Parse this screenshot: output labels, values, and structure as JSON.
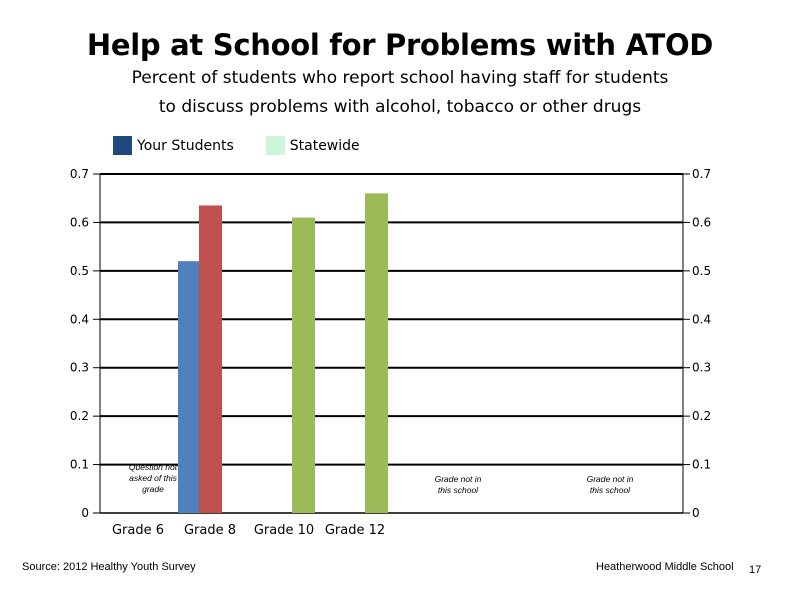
{
  "title": "Help at School for Problems with ATOD",
  "subtitle_line1": "Percent of students who report school having staff for students",
  "subtitle_line2": "to discuss problems with alcohol, tobacco or other drugs",
  "legend": [
    {
      "label": "Your Students",
      "color": "#1f497d"
    },
    {
      "label": "Statewide",
      "color": "#ccf5dc"
    }
  ],
  "footer": {
    "source": "Source: 2012 Healthy Youth Survey",
    "school": "Heatherwood Middle  School",
    "page": "17"
  },
  "chart_data": {
    "type": "bar",
    "categories": [
      "Grade 6",
      "Grade 8",
      "Grade 10",
      "Grade 12"
    ],
    "series": [
      {
        "values": [
          null,
          0.52,
          null,
          null
        ],
        "color": "#4f81bd"
      },
      {
        "values": [
          null,
          0.635,
          0.61,
          0.66
        ],
        "color": "#c0504d",
        "alt_color": "#9bbb59"
      }
    ],
    "ylim": [
      0,
      0.7
    ],
    "yticks": [
      "0",
      "0.1",
      "0.2",
      "0.3",
      "0.4",
      "0.5",
      "0.6",
      "0.7"
    ],
    "secondary_axis": true,
    "grid": true,
    "annotations": [
      {
        "lines": [
          "Question not",
          "asked of this",
          "grade"
        ],
        "category": "Grade 6"
      },
      {
        "lines": [
          "Grade not in",
          "this school"
        ],
        "category": "Grade 10"
      },
      {
        "lines": [
          "Grade not in",
          "this school"
        ],
        "category": "Grade 12"
      }
    ]
  }
}
